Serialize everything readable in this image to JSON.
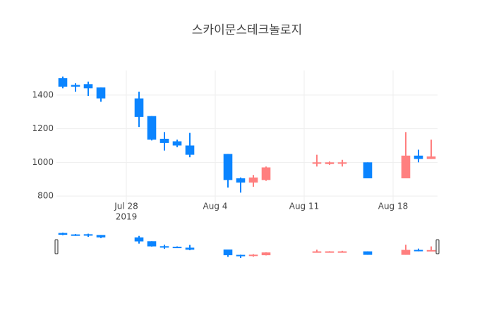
{
  "chart_data": {
    "type": "candlestick",
    "title": "스카이문스테크놀로지",
    "x": [
      "2019-07-23",
      "2019-07-24",
      "2019-07-25",
      "2019-07-26",
      "2019-07-29",
      "2019-07-30",
      "2019-07-31",
      "2019-08-01",
      "2019-08-02",
      "2019-08-05",
      "2019-08-06",
      "2019-08-07",
      "2019-08-08",
      "2019-08-12",
      "2019-08-13",
      "2019-08-14",
      "2019-08-16",
      "2019-08-19",
      "2019-08-20",
      "2019-08-21"
    ],
    "open": [
      1500,
      1460,
      1465,
      1445,
      1380,
      1275,
      1140,
      1125,
      1100,
      1050,
      905,
      880,
      895,
      995,
      990,
      995,
      1000,
      905,
      1040,
      1020
    ],
    "high": [
      1510,
      1470,
      1480,
      1445,
      1420,
      1275,
      1180,
      1135,
      1175,
      1050,
      910,
      925,
      975,
      1045,
      1005,
      1015,
      1000,
      1180,
      1075,
      1135
    ],
    "low": [
      1440,
      1420,
      1395,
      1360,
      1210,
      1130,
      1070,
      1090,
      1030,
      850,
      820,
      855,
      890,
      975,
      985,
      975,
      905,
      905,
      1000,
      1020
    ],
    "close": [
      1450,
      1450,
      1440,
      1380,
      1270,
      1135,
      1115,
      1100,
      1045,
      895,
      880,
      910,
      970,
      1000,
      1000,
      1000,
      905,
      1040,
      1020,
      1035
    ],
    "increasing_color": "#ff7f7f",
    "decreasing_color": "#0a84ff",
    "xlim": [
      "2019-07-22T12:00:00Z",
      "2019-08-21T12:00:00Z"
    ],
    "xticks": [
      {
        "value": "2019-07-28",
        "label": "Jul 28"
      },
      {
        "value": "2019-08-04",
        "label": "Aug 4"
      },
      {
        "value": "2019-08-11",
        "label": "Aug 11"
      },
      {
        "value": "2019-08-18",
        "label": "Aug 18"
      }
    ],
    "x_year_label": "2019",
    "ylim": [
      750,
      1546
    ],
    "yticks": [
      800,
      1000,
      1200,
      1400
    ],
    "grid": true,
    "rangeslider": true
  }
}
